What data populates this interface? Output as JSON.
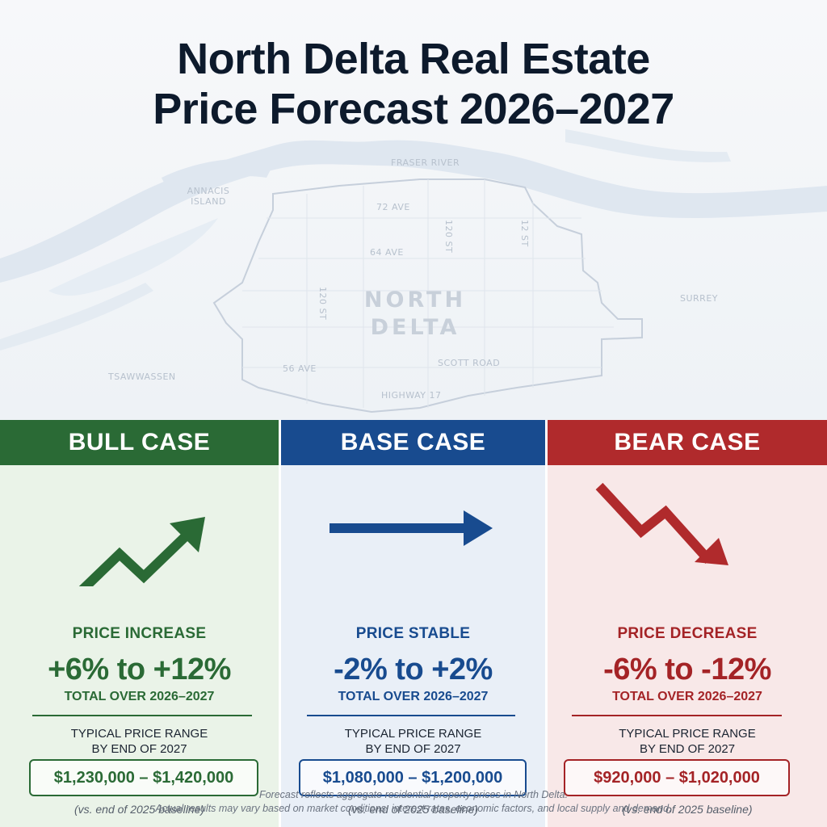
{
  "title": {
    "line1": "North Delta Real Estate",
    "line2": "Price Forecast 2026–2027"
  },
  "map": {
    "labels": {
      "fraser_river": "FRASER RIVER",
      "annacis_island_1": "ANNACIS",
      "annacis_island_2": "ISLAND",
      "ave_72": "72 AVE",
      "ave_64": "64 AVE",
      "ave_56": "56 AVE",
      "st_120": "120 ST",
      "st_120_b": "120 ST",
      "st_12": "12 ST",
      "north_delta_1": "NORTH",
      "north_delta_2": "DELTA",
      "scott_road": "SCOTT ROAD",
      "highway_17": "HIGHWAY 17",
      "surrey": "SURREY",
      "tsawwassen": "TSAWWASSEN"
    }
  },
  "scenarios": {
    "bull": {
      "header": "BULL CASE",
      "icon": "trend-up-arrow-icon",
      "direction_label": "PRICE INCREASE",
      "change_range": "+6% to +12%",
      "period_label": "TOTAL OVER 2026–2027",
      "typical_label_1": "TYPICAL PRICE RANGE",
      "typical_label_2": "BY END OF 2027",
      "price_range": "$1,230,000 – $1,420,000",
      "baseline_note": "(vs. end of 2025 baseline)",
      "color": "#2a6a35"
    },
    "base": {
      "header": "BASE CASE",
      "icon": "flat-right-arrow-icon",
      "direction_label": "PRICE STABLE",
      "change_range": "-2% to +2%",
      "period_label": "TOTAL OVER 2026–2027",
      "typical_label_1": "TYPICAL PRICE RANGE",
      "typical_label_2": "BY END OF 2027",
      "price_range": "$1,080,000 – $1,200,000",
      "baseline_note": "(vs. end of 2025 baseline)",
      "color": "#184b8f"
    },
    "bear": {
      "header": "BEAR CASE",
      "icon": "trend-down-arrow-icon",
      "direction_label": "PRICE DECREASE",
      "change_range": "-6% to -12%",
      "period_label": "TOTAL OVER 2026–2027",
      "typical_label_1": "TYPICAL PRICE RANGE",
      "typical_label_2": "BY END OF 2027",
      "price_range": "$920,000 – $1,020,000",
      "baseline_note": "(vs. end of 2025 baseline)",
      "color": "#a42326"
    }
  },
  "footnote": {
    "line1": "Forecast reflects aggregate residential property prices in North Delta.",
    "line2": "Actual results may vary based on market conditions, interest rates, economic factors, and local supply and demand."
  }
}
